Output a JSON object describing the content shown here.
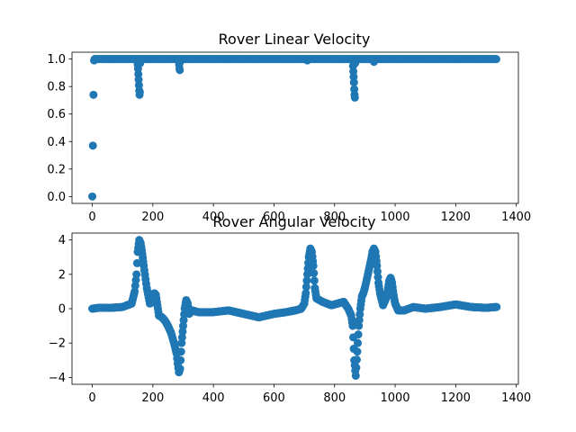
{
  "chart_data": [
    {
      "type": "scatter",
      "title": "Rover Linear Velocity",
      "xlabel": "",
      "ylabel": "",
      "xlim": [
        -67,
        1407
      ],
      "ylim": [
        -0.05,
        1.05
      ],
      "xticks": [
        0,
        200,
        400,
        600,
        800,
        1000,
        1200,
        1400
      ],
      "yticks": [
        0.0,
        0.2,
        0.4,
        0.6,
        0.8,
        1.0
      ],
      "ytick_labels": [
        "0.0",
        "0.2",
        "0.4",
        "0.6",
        "0.8",
        "1.0"
      ],
      "grid": false,
      "marker_color": "#1f77b4",
      "series": [
        {
          "x": [
            0,
            2,
            4,
            6,
            8,
            150,
            151,
            152,
            153,
            154,
            155,
            156,
            157,
            158,
            286,
            287,
            288,
            289,
            290,
            710,
            860,
            861,
            862,
            863,
            864,
            865,
            866,
            867,
            868,
            930
          ],
          "y": [
            0.0,
            0.37,
            0.74,
            0.99,
            1.0,
            0.96,
            0.93,
            0.89,
            0.85,
            0.81,
            0.77,
            0.74,
            0.76,
            0.97,
            0.99,
            0.96,
            0.93,
            0.92,
            0.98,
            0.99,
            0.99,
            0.95,
            0.91,
            0.87,
            0.83,
            0.78,
            0.74,
            0.72,
            0.97,
            0.98
          ]
        }
      ],
      "constant_segments": [
        {
          "x_start": 8,
          "x_end": 1335,
          "y": 1.0
        }
      ]
    },
    {
      "type": "scatter",
      "title": "Rover Angular Velocity",
      "xlabel": "",
      "ylabel": "",
      "xlim": [
        -67,
        1407
      ],
      "ylim": [
        -4.4,
        4.4
      ],
      "xticks": [
        0,
        200,
        400,
        600,
        800,
        1000,
        1200,
        1400
      ],
      "yticks": [
        -4,
        -2,
        0,
        2,
        4
      ],
      "ytick_labels": [
        "−4",
        "−2",
        "0",
        "2",
        "4"
      ],
      "grid": false,
      "marker_color": "#1f77b4",
      "series": [
        {
          "x": [
            0,
            20,
            60,
            100,
            130,
            140,
            146,
            150,
            155,
            160,
            165,
            170,
            180,
            190,
            200,
            205,
            210,
            215,
            220,
            230,
            240,
            250,
            260,
            270,
            278,
            282,
            286,
            290,
            295,
            300,
            305,
            310,
            315,
            320,
            330,
            350,
            400,
            450,
            500,
            550,
            600,
            640,
            670,
            690,
            700,
            705,
            710,
            715,
            720,
            725,
            730,
            735,
            740,
            760,
            790,
            810,
            830,
            845,
            855,
            860,
            865,
            870,
            875,
            880,
            885,
            890,
            895,
            900,
            910,
            920,
            925,
            930,
            935,
            940,
            945,
            950,
            960,
            970,
            975,
            980,
            985,
            990,
            995,
            1000,
            1010,
            1030,
            1060,
            1100,
            1150,
            1200,
            1250,
            1300,
            1335
          ],
          "y": [
            0.0,
            0.05,
            0.05,
            0.1,
            0.3,
            1.0,
            2.0,
            3.3,
            4.0,
            3.8,
            3.2,
            2.5,
            1.2,
            0.3,
            0.4,
            0.9,
            0.8,
            0.2,
            -0.4,
            -0.5,
            -0.7,
            -1.0,
            -1.4,
            -2.0,
            -2.6,
            -3.2,
            -3.7,
            -3.5,
            -2.0,
            -1.0,
            0.0,
            0.5,
            0.3,
            -0.3,
            -0.1,
            -0.2,
            -0.2,
            -0.1,
            -0.3,
            -0.5,
            -0.3,
            -0.2,
            -0.1,
            0.0,
            0.3,
            0.9,
            2.0,
            3.0,
            3.5,
            3.3,
            2.5,
            1.2,
            0.6,
            0.4,
            0.2,
            0.3,
            0.4,
            0.0,
            -0.4,
            -1.0,
            -3.0,
            -3.9,
            -2.5,
            -1.0,
            0.0,
            0.7,
            0.9,
            1.2,
            2.0,
            2.8,
            3.3,
            3.5,
            3.3,
            2.5,
            1.5,
            0.9,
            0.2,
            0.6,
            1.0,
            1.6,
            1.8,
            1.5,
            0.8,
            0.3,
            -0.1,
            -0.1,
            0.1,
            0.0,
            0.1,
            0.25,
            0.1,
            0.05,
            0.1
          ]
        }
      ]
    }
  ]
}
